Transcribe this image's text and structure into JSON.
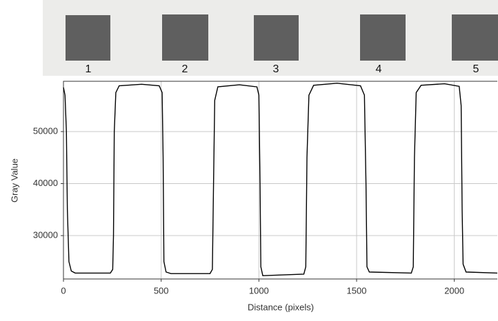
{
  "chart_data": {
    "type": "line",
    "x_label": "Distance (pixels)",
    "y_label": "Gray Value",
    "annotations": [
      "1",
      "2",
      "3",
      "4",
      "5"
    ],
    "x": [
      0,
      8,
      15,
      20,
      28,
      40,
      60,
      240,
      252,
      256,
      260,
      268,
      285,
      400,
      490,
      505,
      510,
      514,
      525,
      550,
      750,
      762,
      768,
      774,
      790,
      900,
      990,
      1000,
      1006,
      1010,
      1020,
      1230,
      1240,
      1246,
      1256,
      1280,
      1400,
      1520,
      1540,
      1548,
      1553,
      1565,
      1780,
      1790,
      1796,
      1805,
      1830,
      1950,
      2025,
      2035,
      2040,
      2045,
      2060,
      2220
    ],
    "series": [
      {
        "color": "#000000",
        "values": [
          58500,
          57000,
          50000,
          35000,
          25000,
          23200,
          22800,
          22800,
          23500,
          30000,
          50000,
          57500,
          58800,
          59100,
          58800,
          57500,
          45000,
          25000,
          23000,
          22700,
          22700,
          23500,
          40000,
          56000,
          58600,
          59000,
          58600,
          57000,
          40000,
          24000,
          22300,
          22600,
          24000,
          45000,
          57000,
          58900,
          59300,
          58800,
          57000,
          40000,
          24000,
          23000,
          22800,
          24000,
          45000,
          57500,
          58900,
          59200,
          58700,
          55000,
          35000,
          24500,
          23000,
          22800
        ]
      }
    ],
    "xlim": [
      0,
      2220
    ],
    "ylim": [
      21660,
      59670
    ],
    "xticks": [
      0,
      500,
      1000,
      1500,
      2000
    ],
    "yticks": [
      30000,
      40000,
      50000
    ],
    "grid": true
  }
}
